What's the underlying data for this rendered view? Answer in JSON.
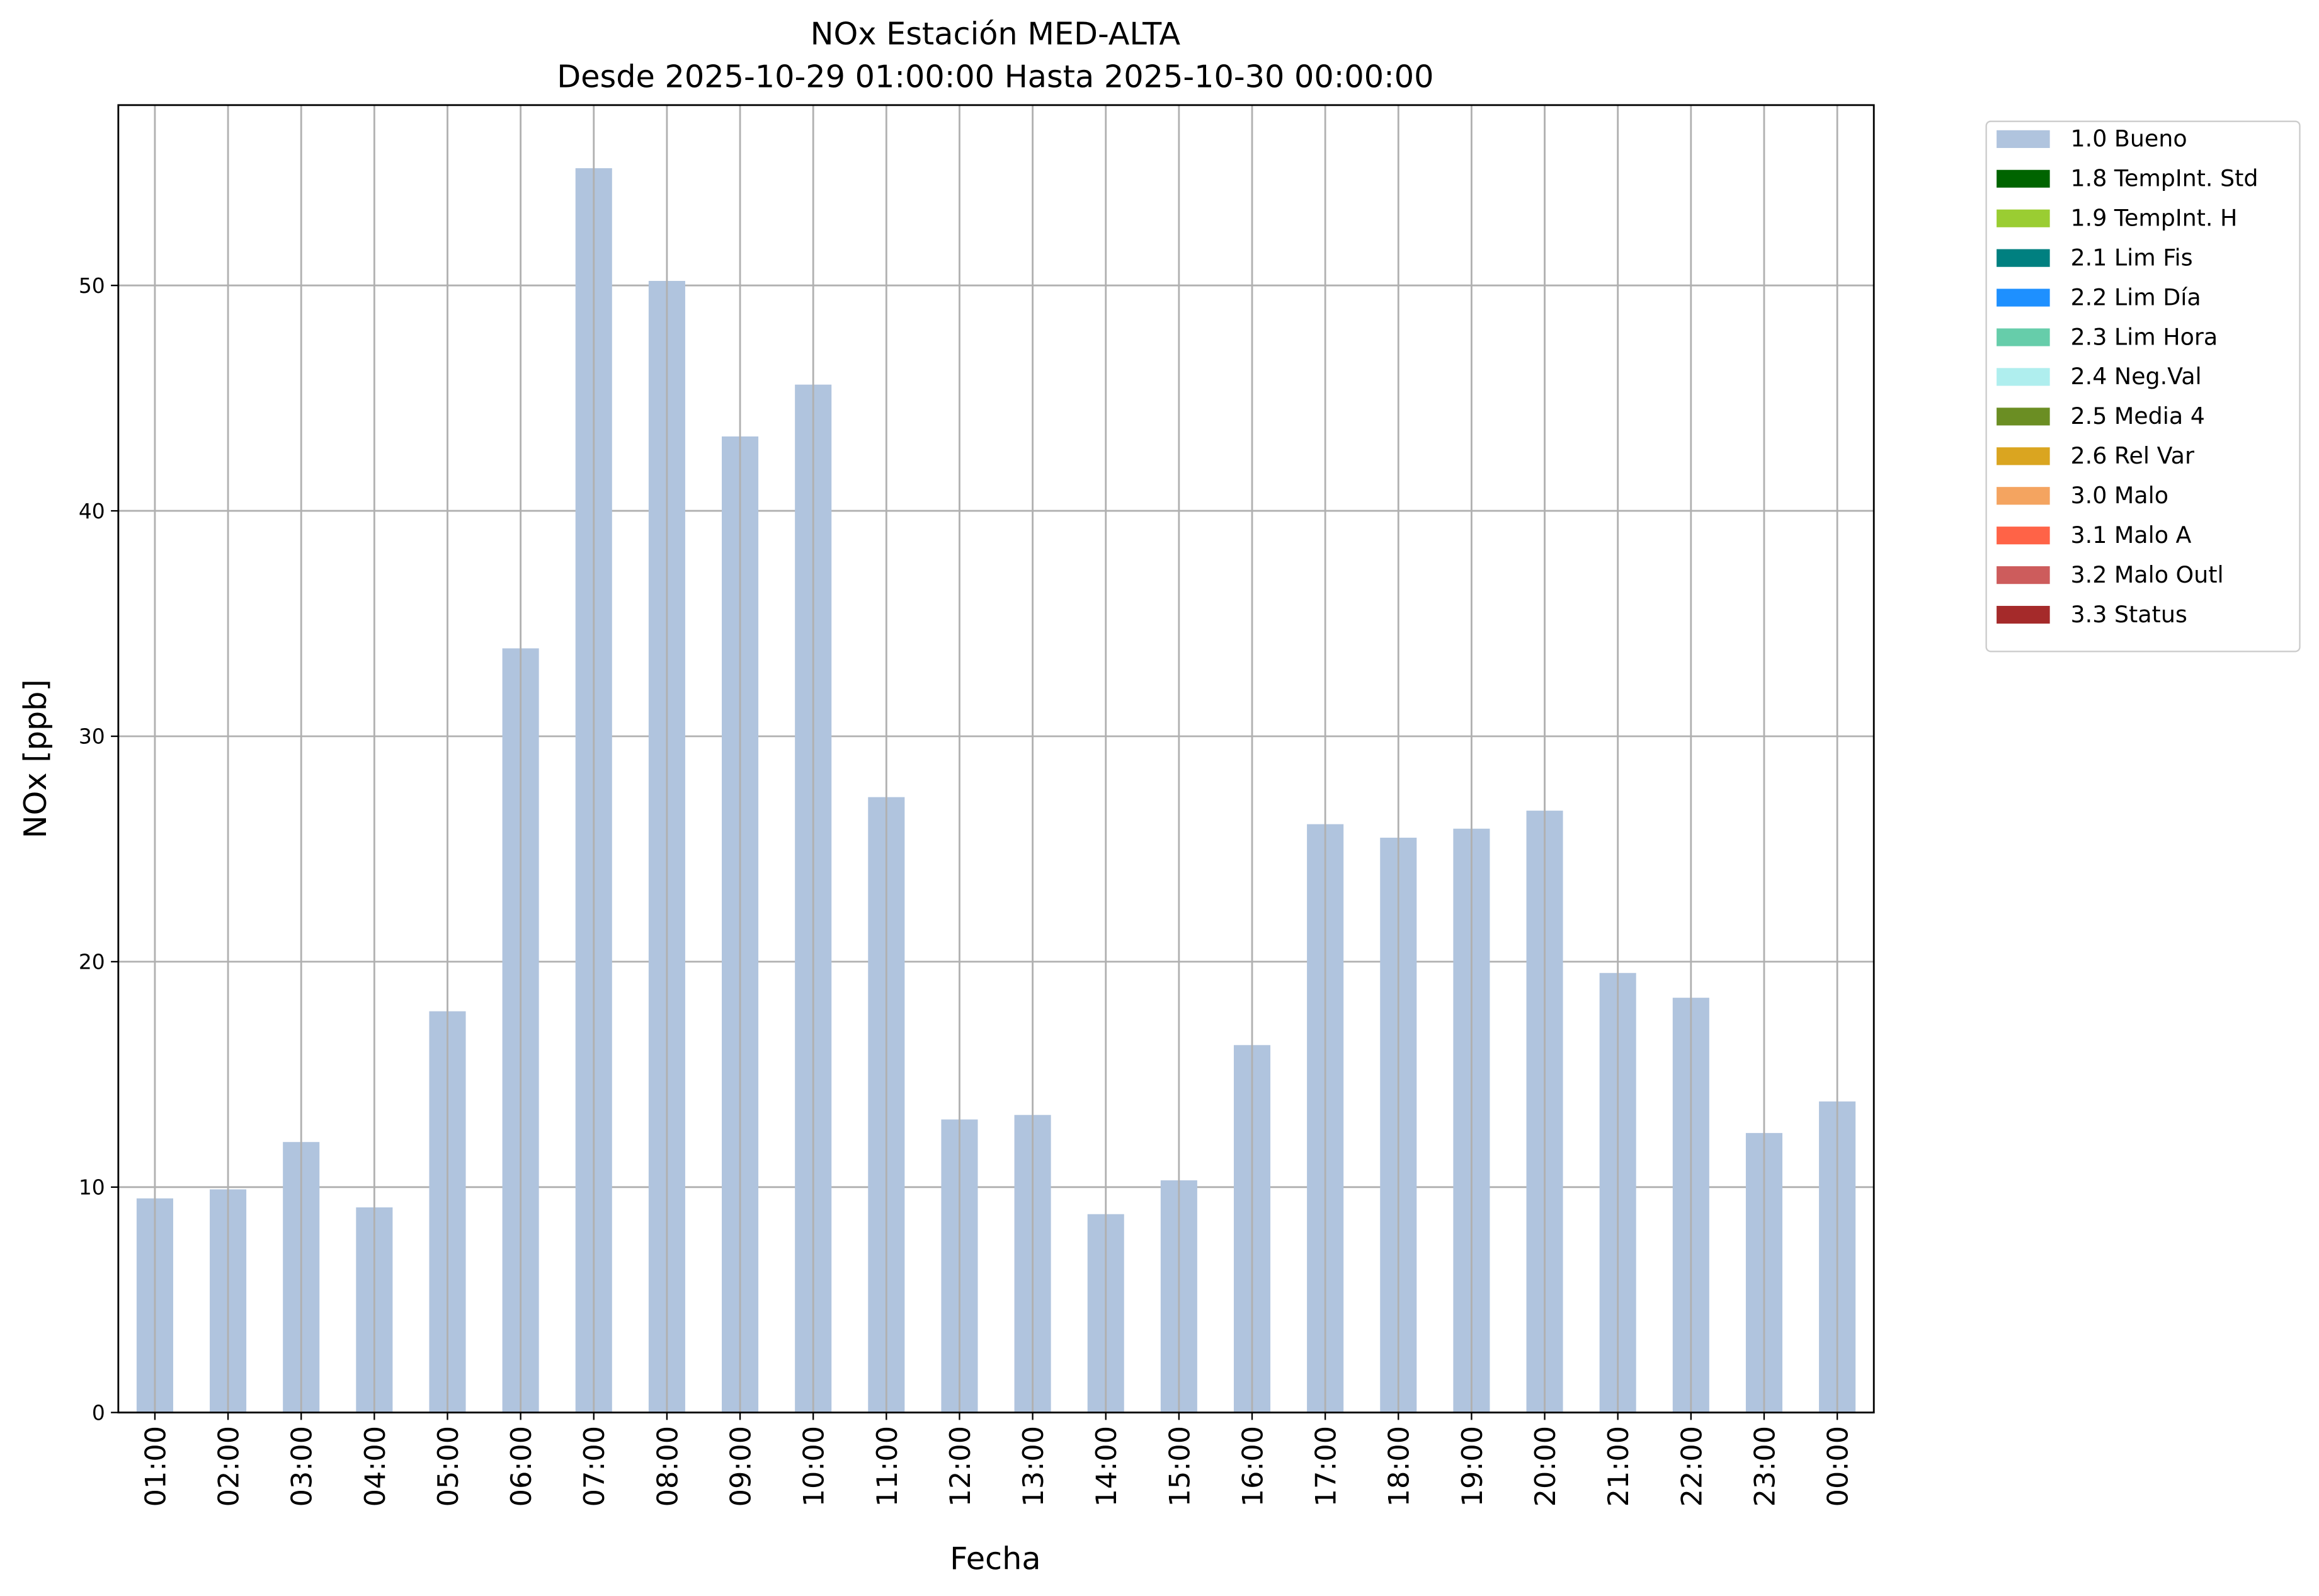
{
  "chart_data": {
    "type": "stacked_bar",
    "title": "NOx Estación MED-ALTA",
    "subtitle": "Desde 2025-10-29 01:00:00 Hasta 2025-10-30 00:00:00",
    "x_label": "Fecha",
    "y_label": "NOx [ppb]",
    "categories": [
      "01:00",
      "02:00",
      "03:00",
      "04:00",
      "05:00",
      "06:00",
      "07:00",
      "08:00",
      "09:00",
      "10:00",
      "11:00",
      "12:00",
      "13:00",
      "14:00",
      "15:00",
      "16:00",
      "17:00",
      "18:00",
      "19:00",
      "20:00",
      "21:00",
      "22:00",
      "23:00",
      "00:00"
    ],
    "series": [
      {
        "name": "1.0 Bueno",
        "color": "#b0c4de",
        "values": [
          9.5,
          9.9,
          12.0,
          9.1,
          17.8,
          33.9,
          55.2,
          50.2,
          43.3,
          45.6,
          27.3,
          13.0,
          13.2,
          8.8,
          10.3,
          16.3,
          26.1,
          25.5,
          25.9,
          26.7,
          19.5,
          18.4,
          12.4,
          13.8
        ]
      },
      {
        "name": "1.8 TempInt. Std",
        "color": "#006400",
        "values": [
          0,
          0,
          0,
          0,
          0,
          0,
          0,
          0,
          0,
          0,
          0,
          0,
          0,
          0,
          0,
          0,
          0,
          0,
          0,
          0,
          0,
          0,
          0,
          0
        ]
      },
      {
        "name": "1.9 TempInt. H",
        "color": "#9acd32",
        "values": [
          0,
          0,
          0,
          0,
          0,
          0,
          0,
          0,
          0,
          0,
          0,
          0,
          0,
          0,
          0,
          0,
          0,
          0,
          0,
          0,
          0,
          0,
          0,
          0
        ]
      },
      {
        "name": "2.1 Lim Fis",
        "color": "#008080",
        "values": [
          0,
          0,
          0,
          0,
          0,
          0,
          0,
          0,
          0,
          0,
          0,
          0,
          0,
          0,
          0,
          0,
          0,
          0,
          0,
          0,
          0,
          0,
          0,
          0
        ]
      },
      {
        "name": "2.2 Lim Día",
        "color": "#1e90ff",
        "values": [
          0,
          0,
          0,
          0,
          0,
          0,
          0,
          0,
          0,
          0,
          0,
          0,
          0,
          0,
          0,
          0,
          0,
          0,
          0,
          0,
          0,
          0,
          0,
          0
        ]
      },
      {
        "name": "2.3 Lim Hora",
        "color": "#66cdaa",
        "values": [
          0,
          0,
          0,
          0,
          0,
          0,
          0,
          0,
          0,
          0,
          0,
          0,
          0,
          0,
          0,
          0,
          0,
          0,
          0,
          0,
          0,
          0,
          0,
          0
        ]
      },
      {
        "name": "2.4 Neg.Val",
        "color": "#afeeee",
        "values": [
          0,
          0,
          0,
          0,
          0,
          0,
          0,
          0,
          0,
          0,
          0,
          0,
          0,
          0,
          0,
          0,
          0,
          0,
          0,
          0,
          0,
          0,
          0,
          0
        ]
      },
      {
        "name": "2.5 Media 4",
        "color": "#6b8e23",
        "values": [
          0,
          0,
          0,
          0,
          0,
          0,
          0,
          0,
          0,
          0,
          0,
          0,
          0,
          0,
          0,
          0,
          0,
          0,
          0,
          0,
          0,
          0,
          0,
          0
        ]
      },
      {
        "name": "2.6 Rel Var",
        "color": "#daa520",
        "values": [
          0,
          0,
          0,
          0,
          0,
          0,
          0,
          0,
          0,
          0,
          0,
          0,
          0,
          0,
          0,
          0,
          0,
          0,
          0,
          0,
          0,
          0,
          0,
          0
        ]
      },
      {
        "name": "3.0 Malo",
        "color": "#f4a460",
        "values": [
          0,
          0,
          0,
          0,
          0,
          0,
          0,
          0,
          0,
          0,
          0,
          0,
          0,
          0,
          0,
          0,
          0,
          0,
          0,
          0,
          0,
          0,
          0,
          0
        ]
      },
      {
        "name": "3.1 Malo A",
        "color": "#ff6347",
        "values": [
          0,
          0,
          0,
          0,
          0,
          0,
          0,
          0,
          0,
          0,
          0,
          0,
          0,
          0,
          0,
          0,
          0,
          0,
          0,
          0,
          0,
          0,
          0,
          0
        ]
      },
      {
        "name": "3.2 Malo Outl",
        "color": "#cd5c5c",
        "values": [
          0,
          0,
          0,
          0,
          0,
          0,
          0,
          0,
          0,
          0,
          0,
          0,
          0,
          0,
          0,
          0,
          0,
          0,
          0,
          0,
          0,
          0,
          0,
          0
        ]
      },
      {
        "name": "3.3 Status",
        "color": "#a52a2a",
        "values": [
          0,
          0,
          0,
          0,
          0,
          0,
          0,
          0,
          0,
          0,
          0,
          0,
          0,
          0,
          0,
          0,
          0,
          0,
          0,
          0,
          0,
          0,
          0,
          0
        ]
      }
    ],
    "ylim": [
      0,
      58
    ],
    "yticks": [
      0,
      10,
      20,
      30,
      40,
      50
    ],
    "grid": true,
    "legend": "outside right"
  }
}
